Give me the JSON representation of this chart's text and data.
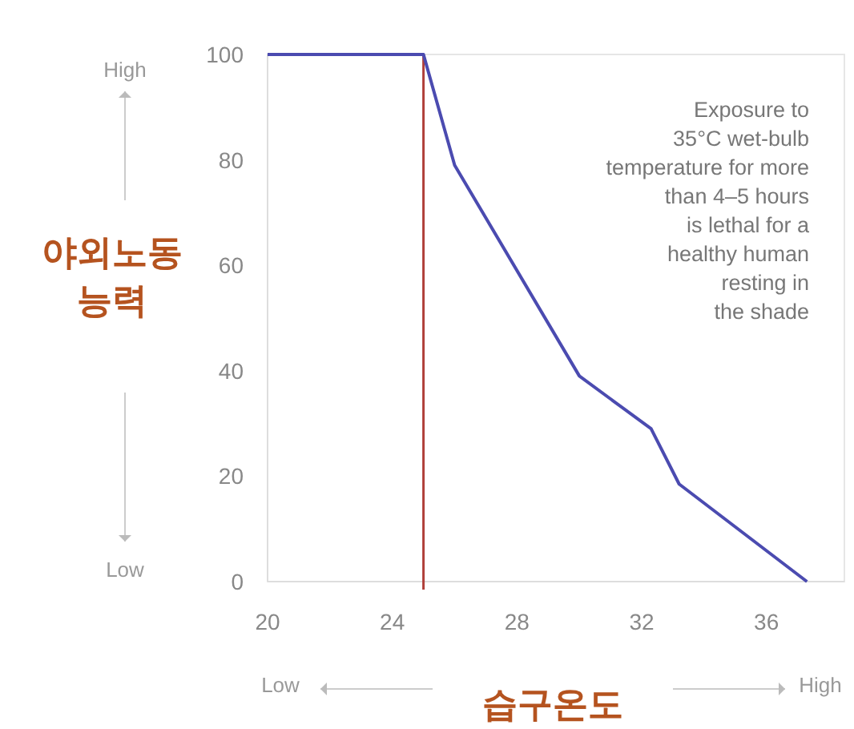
{
  "chart_data": {
    "type": "line",
    "xlabel": "습구온도",
    "ylabel": "야외노동\n능력",
    "x": [
      20,
      25,
      26,
      30,
      32.3,
      33.2,
      37.3
    ],
    "series": [
      {
        "color": "#4b4bb0",
        "values": [
          100,
          100,
          79,
          39,
          29,
          18.5,
          0
        ]
      }
    ],
    "xlim": [
      20,
      38.5
    ],
    "xticks": [
      20,
      24,
      28,
      32,
      36
    ],
    "ylim": [
      0,
      100
    ],
    "yticks": [
      0,
      20,
      40,
      60,
      80,
      100
    ],
    "ref_lines": [
      {
        "axis": "x",
        "value": 25,
        "color": "#b0403a"
      }
    ],
    "grid": false,
    "line_style": "solid",
    "annotations": [
      "Exposure to\n35°C wet-bulb\ntemperature for more\nthan 4–5 hours\nis lethal for a\nhealthy human\nresting in\nthe shade",
      "High",
      "Low",
      "Low",
      "High"
    ]
  }
}
